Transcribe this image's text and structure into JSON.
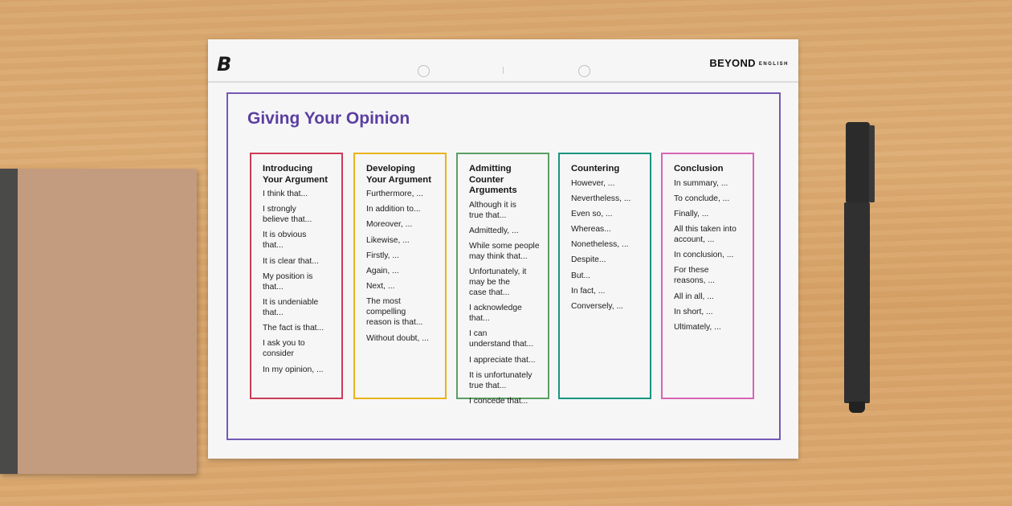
{
  "header": {
    "logo": "B",
    "brand": "BEYOND",
    "brand_sub": "ENGLISH"
  },
  "title": "Giving Your Opinion",
  "colors": {
    "frame": "#7459b4",
    "title": "#5b3fa0"
  },
  "columns": [
    {
      "heading": "Introducing\nYour Argument",
      "color": "#cc3b55",
      "items": [
        "I think that...",
        "I strongly\nbelieve that...",
        "It is obvious\nthat...",
        "It is clear that...",
        "My position is\nthat...",
        "It is undeniable\nthat...",
        "The fact is that...",
        "I ask you to\nconsider",
        "In my opinion, ..."
      ]
    },
    {
      "heading": "Developing\nYour Argument",
      "color": "#e8b318",
      "items": [
        "Furthermore, ...",
        "In addition to...",
        "Moreover, ...",
        "Likewise, ...",
        "Firstly, ...",
        "Again, ...",
        "Next, ...",
        "The most\ncompelling\nreason is that...",
        "Without doubt, ..."
      ]
    },
    {
      "heading": "Admitting Counter\nArguments",
      "color": "#5c9e64",
      "items": [
        "Although it is\ntrue that...",
        "Admittedly, ...",
        "While some people\nmay think that...",
        "Unfortunately, it\nmay be the\ncase that...",
        "I acknowledge that...",
        "I can\nunderstand that...",
        "I appreciate that...",
        "It is unfortunately\ntrue that...",
        "I concede that..."
      ]
    },
    {
      "heading": "Countering",
      "color": "#17957f",
      "items": [
        "However, ...",
        "Nevertheless, ...",
        "Even so, ...",
        "Whereas...",
        "Nonetheless, ...",
        "Despite...",
        "But...",
        "In fact, ...",
        "Conversely, ..."
      ]
    },
    {
      "heading": "Conclusion",
      "color": "#d665b3",
      "items": [
        "In summary, ...",
        "To conclude, ...",
        "Finally, ...",
        "All this taken into\naccount, ...",
        "In conclusion, ...",
        "For these\nreasons, ...",
        "All in all, ...",
        "In short, ...",
        "Ultimately, ..."
      ]
    }
  ]
}
